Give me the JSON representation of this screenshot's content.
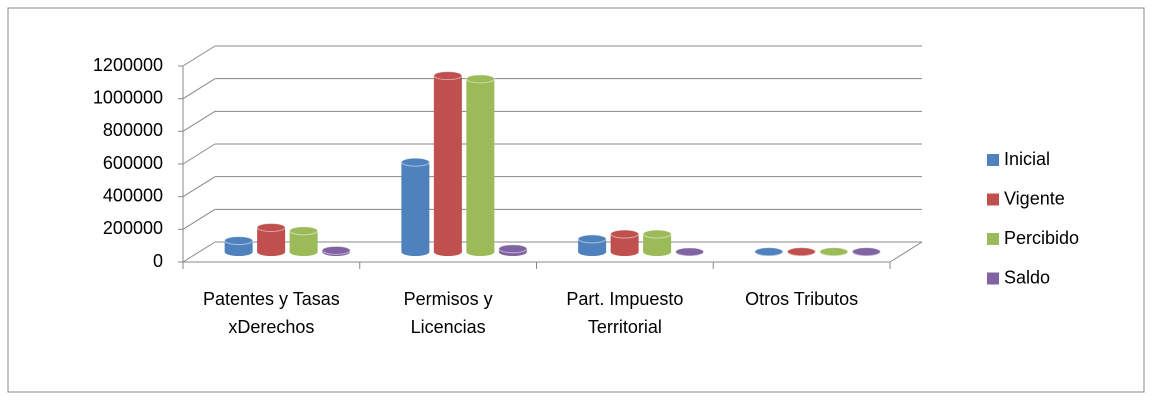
{
  "chart_data": {
    "type": "bar3d",
    "categories": [
      "Patentes y Tasas xDerechos",
      "Permisos y Licencias",
      "Part. Impuesto Territorial",
      "Otros Tributos"
    ],
    "series": [
      {
        "name": "Inicial",
        "color": "#4f81bd",
        "values": [
          70000,
          550000,
          80000,
          2000
        ]
      },
      {
        "name": "Vigente",
        "color": "#c0504d",
        "values": [
          150000,
          1080000,
          110000,
          2000
        ]
      },
      {
        "name": "Percibido",
        "color": "#9bbb59",
        "values": [
          130000,
          1060000,
          110000,
          2000
        ]
      },
      {
        "name": "Saldo",
        "color": "#8064a2",
        "values": [
          10000,
          20000,
          1000,
          2000
        ]
      }
    ],
    "ylim": [
      0,
      1200000
    ],
    "yticks": [
      0,
      200000,
      400000,
      600000,
      800000,
      1000000,
      1200000
    ],
    "grid": true,
    "legend": "right"
  }
}
